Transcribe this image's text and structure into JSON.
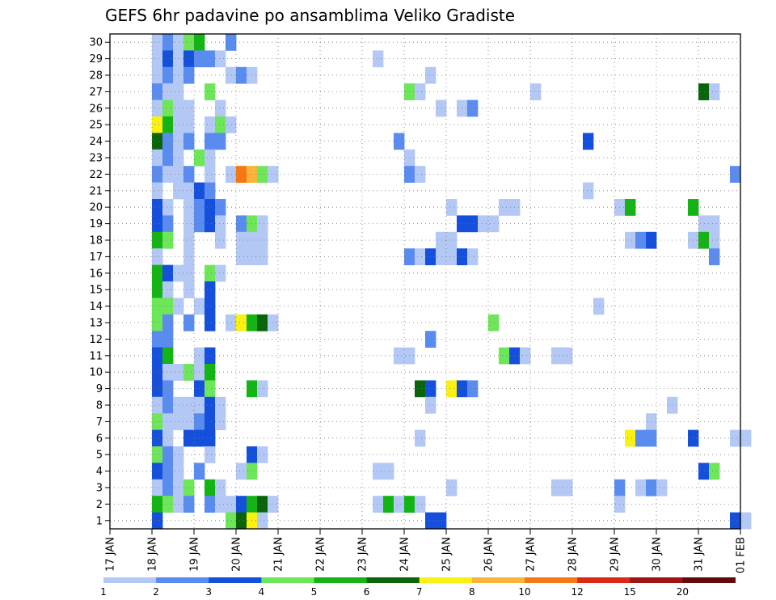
{
  "chart_data": {
    "type": "heatmap",
    "title": "GEFS 6hr padavine po ansamblima Veliko Gradiste",
    "x_unit": "6-hour steps starting 17 JAN 00Z",
    "x_range": [
      0,
      60
    ],
    "y_range": [
      0,
      30
    ],
    "x_ticks": [
      "17 JAN",
      "18 JAN",
      "19 JAN",
      "20 JAN",
      "21 JAN",
      "22 JAN",
      "23 JAN",
      "24 JAN",
      "25 JAN",
      "26 JAN",
      "27 JAN",
      "28 JAN",
      "29 JAN",
      "30 JAN",
      "31 JAN",
      "01 FEB"
    ],
    "y_ticks": [
      "1",
      "2",
      "3",
      "4",
      "5",
      "6",
      "7",
      "8",
      "9",
      "10",
      "11",
      "12",
      "13",
      "14",
      "15",
      "16",
      "17",
      "18",
      "19",
      "20",
      "21",
      "22",
      "23",
      "24",
      "25",
      "26",
      "27",
      "28",
      "29",
      "30"
    ],
    "grid": true,
    "legend": {
      "placement": "bottom",
      "labels": [
        "1",
        "2",
        "3",
        "4",
        "5",
        "6",
        "7",
        "8",
        "10",
        "12",
        "15",
        "20"
      ],
      "colors": [
        "#b4c8f5",
        "#5a8cf0",
        "#1450dc",
        "#6ee65a",
        "#14b414",
        "#0a640a",
        "#faf014",
        "#fab43c",
        "#f57814",
        "#dc2814",
        "#a01414",
        "#640a0a"
      ]
    },
    "runs": [
      [
        30,
        4,
        1,
        "#b4c8f5"
      ],
      [
        30,
        5,
        1,
        "#5a8cf0"
      ],
      [
        30,
        6,
        1,
        "#b4c8f5"
      ],
      [
        30,
        7,
        1,
        "#6ee65a"
      ],
      [
        30,
        8,
        1,
        "#14b414"
      ],
      [
        30,
        11,
        1,
        "#5a8cf0"
      ],
      [
        29,
        4,
        1,
        "#b4c8f5"
      ],
      [
        29,
        5,
        1,
        "#1450dc"
      ],
      [
        29,
        6,
        2,
        "#b4c8f5"
      ],
      [
        29,
        7,
        1,
        "#1450dc"
      ],
      [
        29,
        8,
        2,
        "#5a8cf0"
      ],
      [
        29,
        10,
        1,
        "#b4c8f5"
      ],
      [
        29,
        25,
        1,
        "#b4c8f5"
      ],
      [
        28,
        4,
        1,
        "#b4c8f5"
      ],
      [
        28,
        5,
        1,
        "#5a8cf0"
      ],
      [
        28,
        6,
        1,
        "#b4c8f5"
      ],
      [
        28,
        7,
        1,
        "#5a8cf0"
      ],
      [
        28,
        11,
        1,
        "#b4c8f5"
      ],
      [
        28,
        12,
        1,
        "#5a8cf0"
      ],
      [
        28,
        13,
        1,
        "#b4c8f5"
      ],
      [
        28,
        30,
        1,
        "#b4c8f5"
      ],
      [
        27,
        4,
        1,
        "#5a8cf0"
      ],
      [
        27,
        5,
        2,
        "#b4c8f5"
      ],
      [
        27,
        9,
        1,
        "#6ee65a"
      ],
      [
        27,
        28,
        1,
        "#6ee65a"
      ],
      [
        27,
        29,
        1,
        "#b4c8f5"
      ],
      [
        27,
        40,
        1,
        "#b4c8f5"
      ],
      [
        27,
        56,
        1,
        "#0a640a"
      ],
      [
        27,
        57,
        1,
        "#b4c8f5"
      ],
      [
        26,
        4,
        1,
        "#b4c8f5"
      ],
      [
        26,
        5,
        1,
        "#6ee65a"
      ],
      [
        26,
        6,
        2,
        "#b4c8f5"
      ],
      [
        26,
        10,
        1,
        "#b4c8f5"
      ],
      [
        26,
        31,
        1,
        "#b4c8f5"
      ],
      [
        26,
        33,
        1,
        "#b4c8f5"
      ],
      [
        26,
        34,
        1,
        "#5a8cf0"
      ],
      [
        25,
        4,
        1,
        "#faf014"
      ],
      [
        25,
        5,
        1,
        "#14b414"
      ],
      [
        25,
        6,
        2,
        "#b4c8f5"
      ],
      [
        25,
        9,
        1,
        "#b4c8f5"
      ],
      [
        25,
        10,
        1,
        "#6ee65a"
      ],
      [
        25,
        11,
        1,
        "#b4c8f5"
      ],
      [
        24,
        4,
        1,
        "#0a640a"
      ],
      [
        24,
        5,
        1,
        "#5a8cf0"
      ],
      [
        24,
        6,
        1,
        "#b4c8f5"
      ],
      [
        24,
        7,
        1,
        "#5a8cf0"
      ],
      [
        24,
        9,
        2,
        "#5a8cf0"
      ],
      [
        24,
        27,
        1,
        "#5a8cf0"
      ],
      [
        24,
        45,
        1,
        "#1450dc"
      ],
      [
        23,
        4,
        1,
        "#b4c8f5"
      ],
      [
        23,
        5,
        1,
        "#5a8cf0"
      ],
      [
        23,
        6,
        1,
        "#b4c8f5"
      ],
      [
        23,
        8,
        1,
        "#6ee65a"
      ],
      [
        23,
        9,
        1,
        "#b4c8f5"
      ],
      [
        23,
        28,
        1,
        "#b4c8f5"
      ],
      [
        22,
        4,
        1,
        "#5a8cf0"
      ],
      [
        22,
        5,
        2,
        "#b4c8f5"
      ],
      [
        22,
        7,
        1,
        "#5a8cf0"
      ],
      [
        22,
        9,
        1,
        "#b4c8f5"
      ],
      [
        22,
        11,
        1,
        "#b4c8f5"
      ],
      [
        22,
        12,
        1,
        "#f57814"
      ],
      [
        22,
        13,
        1,
        "#fab43c"
      ],
      [
        22,
        14,
        1,
        "#6ee65a"
      ],
      [
        22,
        15,
        1,
        "#b4c8f5"
      ],
      [
        22,
        28,
        1,
        "#5a8cf0"
      ],
      [
        22,
        29,
        1,
        "#b4c8f5"
      ],
      [
        22,
        59,
        1,
        "#5a8cf0"
      ],
      [
        21,
        4,
        1,
        "#b4c8f5"
      ],
      [
        21,
        6,
        2,
        "#b4c8f5"
      ],
      [
        21,
        8,
        1,
        "#1450dc"
      ],
      [
        21,
        9,
        1,
        "#5a8cf0"
      ],
      [
        21,
        45,
        1,
        "#b4c8f5"
      ],
      [
        20,
        4,
        1,
        "#1450dc"
      ],
      [
        20,
        5,
        1,
        "#b4c8f5"
      ],
      [
        20,
        7,
        1,
        "#b4c8f5"
      ],
      [
        20,
        8,
        1,
        "#5a8cf0"
      ],
      [
        20,
        9,
        1,
        "#1450dc"
      ],
      [
        20,
        10,
        1,
        "#5a8cf0"
      ],
      [
        20,
        32,
        1,
        "#b4c8f5"
      ],
      [
        20,
        37,
        2,
        "#b4c8f5"
      ],
      [
        20,
        48,
        1,
        "#b4c8f5"
      ],
      [
        20,
        49,
        1,
        "#14b414"
      ],
      [
        20,
        55,
        1,
        "#14b414"
      ],
      [
        19,
        4,
        1,
        "#1450dc"
      ],
      [
        19,
        5,
        1,
        "#5a8cf0"
      ],
      [
        19,
        7,
        1,
        "#b4c8f5"
      ],
      [
        19,
        8,
        1,
        "#5a8cf0"
      ],
      [
        19,
        9,
        1,
        "#1450dc"
      ],
      [
        19,
        10,
        1,
        "#b4c8f5"
      ],
      [
        19,
        12,
        1,
        "#5a8cf0"
      ],
      [
        19,
        13,
        1,
        "#6ee65a"
      ],
      [
        19,
        14,
        1,
        "#b4c8f5"
      ],
      [
        19,
        33,
        2,
        "#1450dc"
      ],
      [
        19,
        35,
        2,
        "#b4c8f5"
      ],
      [
        19,
        56,
        2,
        "#b4c8f5"
      ],
      [
        18,
        4,
        1,
        "#14b414"
      ],
      [
        18,
        5,
        1,
        "#6ee65a"
      ],
      [
        18,
        7,
        1,
        "#b4c8f5"
      ],
      [
        18,
        10,
        1,
        "#b4c8f5"
      ],
      [
        18,
        12,
        3,
        "#b4c8f5"
      ],
      [
        18,
        31,
        2,
        "#b4c8f5"
      ],
      [
        18,
        49,
        1,
        "#b4c8f5"
      ],
      [
        18,
        50,
        1,
        "#5a8cf0"
      ],
      [
        18,
        51,
        1,
        "#1450dc"
      ],
      [
        18,
        55,
        1,
        "#b4c8f5"
      ],
      [
        18,
        56,
        1,
        "#14b414"
      ],
      [
        18,
        57,
        1,
        "#b4c8f5"
      ],
      [
        17,
        4,
        1,
        "#b4c8f5"
      ],
      [
        17,
        7,
        1,
        "#b4c8f5"
      ],
      [
        17,
        12,
        3,
        "#b4c8f5"
      ],
      [
        17,
        28,
        1,
        "#5a8cf0"
      ],
      [
        17,
        29,
        1,
        "#b4c8f5"
      ],
      [
        17,
        30,
        1,
        "#1450dc"
      ],
      [
        17,
        31,
        2,
        "#b4c8f5"
      ],
      [
        17,
        33,
        1,
        "#1450dc"
      ],
      [
        17,
        34,
        1,
        "#b4c8f5"
      ],
      [
        17,
        57,
        1,
        "#5a8cf0"
      ],
      [
        16,
        4,
        1,
        "#14b414"
      ],
      [
        16,
        5,
        1,
        "#1450dc"
      ],
      [
        16,
        6,
        2,
        "#b4c8f5"
      ],
      [
        16,
        9,
        1,
        "#6ee65a"
      ],
      [
        16,
        10,
        1,
        "#b4c8f5"
      ],
      [
        15,
        4,
        1,
        "#14b414"
      ],
      [
        15,
        5,
        1,
        "#b4c8f5"
      ],
      [
        15,
        7,
        1,
        "#b4c8f5"
      ],
      [
        15,
        9,
        1,
        "#1450dc"
      ],
      [
        14,
        4,
        2,
        "#6ee65a"
      ],
      [
        14,
        6,
        1,
        "#b4c8f5"
      ],
      [
        14,
        8,
        1,
        "#b4c8f5"
      ],
      [
        14,
        9,
        1,
        "#1450dc"
      ],
      [
        14,
        46,
        1,
        "#b4c8f5"
      ],
      [
        13,
        4,
        1,
        "#6ee65a"
      ],
      [
        13,
        5,
        1,
        "#5a8cf0"
      ],
      [
        13,
        7,
        1,
        "#5a8cf0"
      ],
      [
        13,
        9,
        1,
        "#1450dc"
      ],
      [
        13,
        11,
        1,
        "#b4c8f5"
      ],
      [
        13,
        12,
        1,
        "#faf014"
      ],
      [
        13,
        13,
        1,
        "#14b414"
      ],
      [
        13,
        14,
        1,
        "#0a640a"
      ],
      [
        13,
        15,
        1,
        "#b4c8f5"
      ],
      [
        13,
        36,
        1,
        "#6ee65a"
      ],
      [
        12,
        4,
        2,
        "#5a8cf0"
      ],
      [
        12,
        30,
        1,
        "#5a8cf0"
      ],
      [
        11,
        4,
        1,
        "#1450dc"
      ],
      [
        11,
        5,
        1,
        "#14b414"
      ],
      [
        11,
        8,
        2,
        "#b4c8f5"
      ],
      [
        11,
        9,
        1,
        "#1450dc"
      ],
      [
        11,
        27,
        2,
        "#b4c8f5"
      ],
      [
        11,
        37,
        1,
        "#6ee65a"
      ],
      [
        11,
        38,
        1,
        "#1450dc"
      ],
      [
        11,
        39,
        1,
        "#b4c8f5"
      ],
      [
        11,
        42,
        2,
        "#b4c8f5"
      ],
      [
        10,
        4,
        1,
        "#1450dc"
      ],
      [
        10,
        5,
        2,
        "#b4c8f5"
      ],
      [
        10,
        7,
        1,
        "#6ee65a"
      ],
      [
        10,
        8,
        1,
        "#b4c8f5"
      ],
      [
        10,
        9,
        1,
        "#14b414"
      ],
      [
        9,
        4,
        1,
        "#1450dc"
      ],
      [
        9,
        5,
        1,
        "#5a8cf0"
      ],
      [
        9,
        8,
        1,
        "#1450dc"
      ],
      [
        9,
        9,
        1,
        "#6ee65a"
      ],
      [
        9,
        13,
        1,
        "#14b414"
      ],
      [
        9,
        14,
        1,
        "#b4c8f5"
      ],
      [
        9,
        29,
        1,
        "#0a640a"
      ],
      [
        9,
        30,
        1,
        "#1450dc"
      ],
      [
        9,
        32,
        1,
        "#faf014"
      ],
      [
        9,
        33,
        1,
        "#1450dc"
      ],
      [
        9,
        34,
        1,
        "#5a8cf0"
      ],
      [
        8,
        4,
        1,
        "#b4c8f5"
      ],
      [
        8,
        5,
        1,
        "#5a8cf0"
      ],
      [
        8,
        6,
        3,
        "#b4c8f5"
      ],
      [
        8,
        9,
        1,
        "#1450dc"
      ],
      [
        8,
        10,
        1,
        "#b4c8f5"
      ],
      [
        8,
        30,
        1,
        "#b4c8f5"
      ],
      [
        8,
        53,
        1,
        "#b4c8f5"
      ],
      [
        7,
        4,
        1,
        "#6ee65a"
      ],
      [
        7,
        5,
        3,
        "#b4c8f5"
      ],
      [
        7,
        8,
        1,
        "#5a8cf0"
      ],
      [
        7,
        9,
        1,
        "#1450dc"
      ],
      [
        7,
        10,
        1,
        "#b4c8f5"
      ],
      [
        7,
        51,
        1,
        "#b4c8f5"
      ],
      [
        6,
        4,
        1,
        "#1450dc"
      ],
      [
        6,
        5,
        1,
        "#b4c8f5"
      ],
      [
        6,
        7,
        1,
        "#1450dc"
      ],
      [
        6,
        8,
        2,
        "#1450dc"
      ],
      [
        6,
        29,
        1,
        "#b4c8f5"
      ],
      [
        6,
        49,
        1,
        "#faf014"
      ],
      [
        6,
        50,
        2,
        "#5a8cf0"
      ],
      [
        6,
        55,
        1,
        "#1450dc"
      ],
      [
        6,
        59,
        2,
        "#b4c8f5"
      ],
      [
        5,
        4,
        1,
        "#6ee65a"
      ],
      [
        5,
        5,
        1,
        "#5a8cf0"
      ],
      [
        5,
        6,
        1,
        "#b4c8f5"
      ],
      [
        5,
        9,
        1,
        "#b4c8f5"
      ],
      [
        5,
        13,
        1,
        "#1450dc"
      ],
      [
        5,
        14,
        1,
        "#b4c8f5"
      ],
      [
        4,
        4,
        1,
        "#1450dc"
      ],
      [
        4,
        5,
        1,
        "#5a8cf0"
      ],
      [
        4,
        6,
        1,
        "#b4c8f5"
      ],
      [
        4,
        8,
        1,
        "#5a8cf0"
      ],
      [
        4,
        12,
        1,
        "#b4c8f5"
      ],
      [
        4,
        13,
        1,
        "#6ee65a"
      ],
      [
        4,
        25,
        2,
        "#b4c8f5"
      ],
      [
        4,
        56,
        1,
        "#1450dc"
      ],
      [
        4,
        57,
        1,
        "#6ee65a"
      ],
      [
        3,
        4,
        1,
        "#b4c8f5"
      ],
      [
        3,
        5,
        1,
        "#5a8cf0"
      ],
      [
        3,
        6,
        1,
        "#b4c8f5"
      ],
      [
        3,
        7,
        1,
        "#6ee65a"
      ],
      [
        3,
        9,
        1,
        "#14b414"
      ],
      [
        3,
        10,
        1,
        "#b4c8f5"
      ],
      [
        3,
        32,
        1,
        "#b4c8f5"
      ],
      [
        3,
        42,
        2,
        "#b4c8f5"
      ],
      [
        3,
        48,
        1,
        "#5a8cf0"
      ],
      [
        3,
        50,
        1,
        "#b4c8f5"
      ],
      [
        3,
        51,
        1,
        "#5a8cf0"
      ],
      [
        3,
        52,
        1,
        "#b4c8f5"
      ],
      [
        2,
        4,
        1,
        "#14b414"
      ],
      [
        2,
        5,
        1,
        "#6ee65a"
      ],
      [
        2,
        6,
        1,
        "#b4c8f5"
      ],
      [
        2,
        7,
        1,
        "#5a8cf0"
      ],
      [
        2,
        9,
        1,
        "#5a8cf0"
      ],
      [
        2,
        10,
        2,
        "#b4c8f5"
      ],
      [
        2,
        12,
        1,
        "#1450dc"
      ],
      [
        2,
        13,
        1,
        "#14b414"
      ],
      [
        2,
        14,
        1,
        "#0a640a"
      ],
      [
        2,
        15,
        1,
        "#b4c8f5"
      ],
      [
        2,
        25,
        1,
        "#b4c8f5"
      ],
      [
        2,
        26,
        1,
        "#14b414"
      ],
      [
        2,
        27,
        1,
        "#b4c8f5"
      ],
      [
        2,
        28,
        1,
        "#14b414"
      ],
      [
        2,
        29,
        1,
        "#b4c8f5"
      ],
      [
        2,
        48,
        1,
        "#b4c8f5"
      ],
      [
        1,
        4,
        1,
        "#1450dc"
      ],
      [
        1,
        11,
        1,
        "#6ee65a"
      ],
      [
        1,
        12,
        1,
        "#0a640a"
      ],
      [
        1,
        13,
        1,
        "#faf014"
      ],
      [
        1,
        14,
        1,
        "#b4c8f5"
      ],
      [
        1,
        30,
        2,
        "#1450dc"
      ],
      [
        1,
        59,
        1,
        "#1450dc"
      ],
      [
        1,
        60,
        1,
        "#b4c8f5"
      ]
    ]
  }
}
